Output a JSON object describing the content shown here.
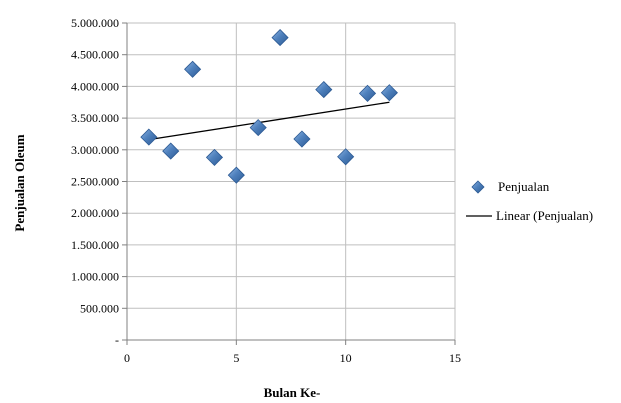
{
  "chart_data": {
    "type": "scatter",
    "xlabel": "Bulan Ke-",
    "ylabel": "Penjualan Oleum",
    "xlim": [
      0,
      15
    ],
    "ylim": [
      0,
      5000000
    ],
    "x_ticks": [
      0,
      5,
      10,
      15
    ],
    "x_tick_labels": [
      "0",
      "5",
      "10",
      "15"
    ],
    "y_ticks": [
      0,
      500000,
      1000000,
      1500000,
      2000000,
      2500000,
      3000000,
      3500000,
      4000000,
      4500000,
      5000000
    ],
    "y_tick_labels": [
      "-",
      "500.000",
      "1.000.000",
      "1.500.000",
      "2.000.000",
      "2.500.000",
      "3.000.000",
      "3.500.000",
      "4.000.000",
      "4.500.000",
      "5.000.000"
    ],
    "grid": true,
    "legend_position": "right",
    "series": [
      {
        "name": "Penjualan",
        "marker": "diamond",
        "color": "#4a7ebb",
        "x": [
          1,
          2,
          3,
          4,
          5,
          6,
          7,
          8,
          9,
          10,
          11,
          12
        ],
        "y": [
          3200000,
          2980000,
          4270000,
          2880000,
          2600000,
          3350000,
          4770000,
          3170000,
          3950000,
          2890000,
          3890000,
          3900000
        ]
      }
    ],
    "trendline": {
      "name": "Linear (Penjualan)",
      "type": "linear",
      "color": "#000000",
      "x": [
        1,
        12
      ],
      "y": [
        3160000,
        3750000
      ]
    }
  }
}
